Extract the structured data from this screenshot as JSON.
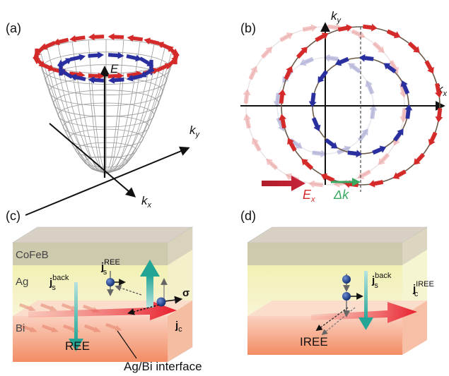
{
  "panels": {
    "a": {
      "label": "(a)",
      "axis_E": "E",
      "axis_ky": "k",
      "axis_ky_sub": "y",
      "axis_kx": "k",
      "axis_kx_sub": "x"
    },
    "b": {
      "label": "(b)",
      "axis_ky": "k",
      "axis_ky_sub": "y",
      "axis_kx": "k",
      "axis_kx_sub": "x",
      "field_label": "E",
      "field_sub": "x",
      "shift_label": "Δk"
    },
    "c": {
      "label": "(c)",
      "layer_cofeb": "CoFeB",
      "layer_ag": "Ag",
      "layer_bi": "Bi",
      "js_back": "j",
      "js_back_sub": "s",
      "js_back_sup": "back",
      "js_ree": "j",
      "js_ree_sub": "s",
      "js_ree_sup": "REE",
      "sigma": "σ",
      "jc": "j",
      "jc_sub": "c",
      "ree": "REE",
      "interface": "Ag/Bi interface"
    },
    "d": {
      "label": "(d)",
      "js_back": "j",
      "js_back_sub": "s",
      "js_back_sup": "back",
      "jc": "j",
      "jc_sub": "c",
      "jc_sup": "IREE",
      "iree": "IREE"
    }
  },
  "colors": {
    "red_arrow": "#d42a2a",
    "blue_arrow": "#2a2fa0",
    "teal_arrow": "#2aa89a",
    "green_arrow": "#3aa860",
    "dark_red": "#b01e2a",
    "cofeb": "#c9bfae",
    "ag": "#f3f3bf",
    "bi": "#f4a27a"
  }
}
